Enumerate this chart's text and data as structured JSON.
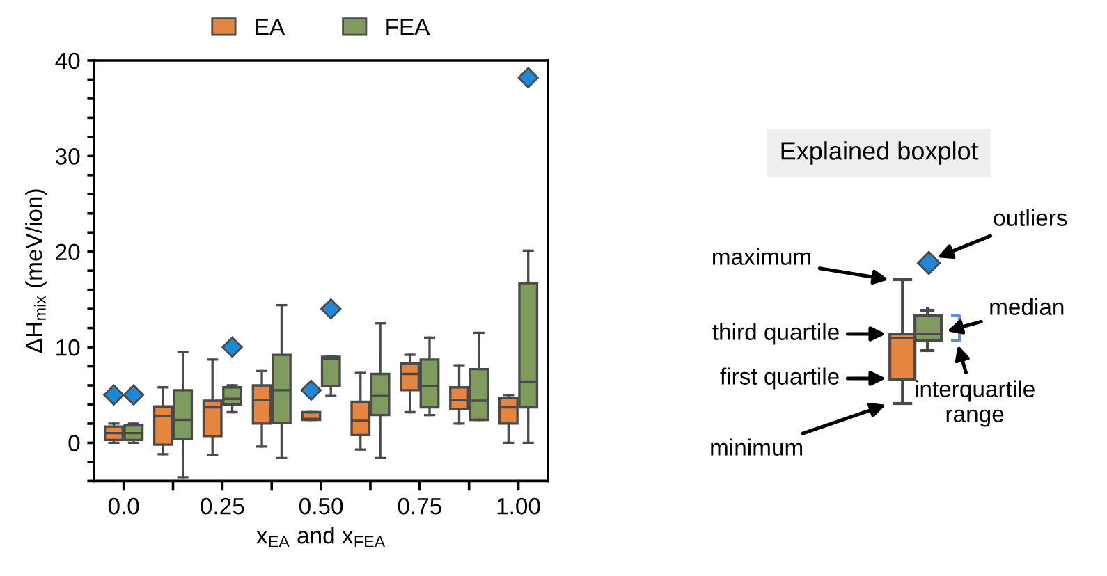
{
  "chart_data": [
    {
      "type": "box",
      "xlabel": "x$_{EA}$ and x$_{FEA}$",
      "ylabel": "ΔH$_{mix}$ (meV/ion)",
      "categories": [
        "0.0",
        null,
        "0.25",
        null,
        "0.50",
        null,
        "0.75",
        null,
        "1.00"
      ],
      "ylim": [
        -4,
        40
      ],
      "yticks": [
        {
          "value": -4,
          "label": null
        },
        {
          "value": -2,
          "label": null
        },
        0,
        {
          "value": 2,
          "label": null
        },
        {
          "value": 4,
          "label": null
        },
        {
          "value": 6,
          "label": null
        },
        {
          "value": 8,
          "label": null
        },
        10,
        {
          "value": 12,
          "label": null
        },
        {
          "value": 14,
          "label": null
        },
        {
          "value": 16,
          "label": null
        },
        {
          "value": 18,
          "label": null
        },
        20,
        {
          "value": 22,
          "label": null
        },
        {
          "value": 24,
          "label": null
        },
        {
          "value": 26,
          "label": null
        },
        {
          "value": 28,
          "label": null
        },
        30,
        {
          "value": 32,
          "label": null
        },
        {
          "value": 34,
          "label": null
        },
        {
          "value": 36,
          "label": null
        },
        {
          "value": 38,
          "label": null
        },
        40
      ],
      "legend": "top",
      "grid": false,
      "marker": "diamond",
      "series": [
        {
          "name": "EA",
          "color": "#e5853f",
          "boxes": [
            {
              "low": 0,
              "q1": 0.3,
              "median": 1.0,
              "q3": 1.7,
              "high": 2.0,
              "outliers": [
                5.0
              ]
            },
            {
              "low": -1.2,
              "q1": -0.2,
              "median": 2.8,
              "q3": 3.8,
              "high": 5.8
            },
            {
              "low": -1.3,
              "q1": 0.7,
              "median": 3.7,
              "q3": 4.4,
              "high": 8.7
            },
            {
              "low": -0.4,
              "q1": 2.0,
              "median": 4.5,
              "q3": 6.0,
              "high": 7.5
            },
            {
              "low": 2.4,
              "q1": 2.4,
              "median": 2.5,
              "q3": 3.2,
              "high": 3.2,
              "outliers": [
                5.5
              ]
            },
            {
              "low": -0.7,
              "q1": 0.8,
              "median": 2.3,
              "q3": 4.3,
              "high": 7.3
            },
            {
              "low": 3.2,
              "q1": 5.5,
              "median": 7.2,
              "q3": 8.3,
              "high": 9.2
            },
            {
              "low": 2.0,
              "q1": 3.5,
              "median": 4.5,
              "q3": 5.8,
              "high": 8.1
            },
            {
              "low": 0,
              "q1": 2.0,
              "median": 3.7,
              "q3": 4.7,
              "high": 5.0
            }
          ]
        },
        {
          "name": "FEA",
          "color": "#7f9c5e",
          "boxes": [
            {
              "low": 0,
              "q1": 0.3,
              "median": 1.0,
              "q3": 1.8,
              "high": 2.0,
              "outliers": [
                5.0
              ]
            },
            {
              "low": -3.6,
              "q1": 0.4,
              "median": 2.4,
              "q3": 5.5,
              "high": 9.5
            },
            {
              "low": 3.2,
              "q1": 4.0,
              "median": 4.6,
              "q3": 5.8,
              "high": 6.0,
              "outliers": [
                10.0
              ]
            },
            {
              "low": -1.6,
              "q1": 2.1,
              "median": 5.5,
              "q3": 9.2,
              "high": 14.4
            },
            {
              "low": 4.9,
              "q1": 5.9,
              "median": 8.8,
              "q3": 9.0,
              "high": 9.0,
              "outliers": [
                14.0
              ]
            },
            {
              "low": -1.6,
              "q1": 2.9,
              "median": 4.9,
              "q3": 7.2,
              "high": 12.5
            },
            {
              "low": 2.9,
              "q1": 3.7,
              "median": 5.9,
              "q3": 8.7,
              "high": 11.0
            },
            {
              "low": 2.4,
              "q1": 2.4,
              "median": 4.4,
              "q3": 7.7,
              "high": 11.5
            },
            {
              "low": 0,
              "q1": 3.7,
              "median": 6.4,
              "q3": 16.7,
              "high": 20.1,
              "outliers": [
                38.2
              ]
            }
          ]
        }
      ]
    },
    {
      "type": "other",
      "title": "Explained boxplot",
      "annotations": [
        "outliers",
        "maximum",
        "median",
        "third quartile",
        "first quartile",
        "interquartile range",
        "minimum"
      ]
    }
  ]
}
